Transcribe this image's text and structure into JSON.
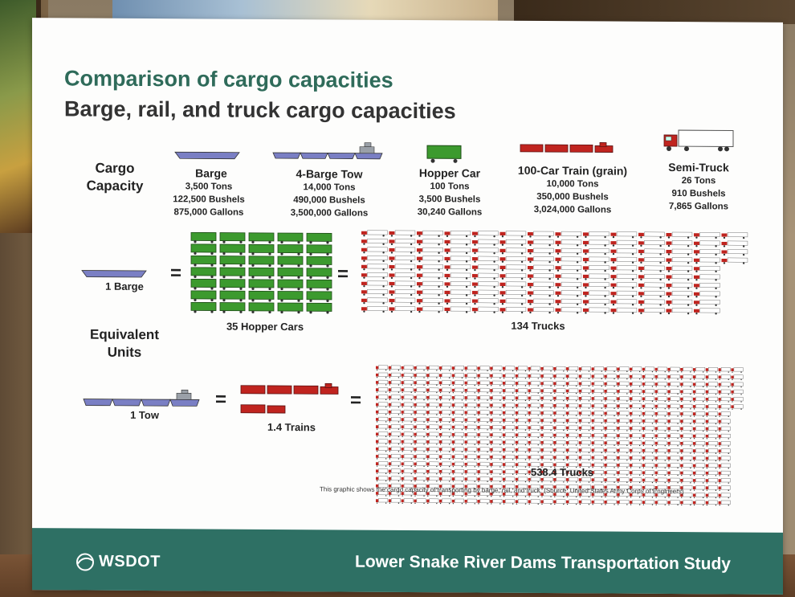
{
  "poster": {
    "title": "Comparison of cargo capacities",
    "subtitle": "Barge, rail, and truck cargo capacities",
    "cargo_capacity_label": "Cargo Capacity",
    "equivalent_units_label": "Equivalent Units",
    "vehicles": [
      {
        "name": "Barge",
        "lines": [
          "3,500 Tons",
          "122,500 Bushels",
          "875,000 Gallons"
        ]
      },
      {
        "name": "4-Barge Tow",
        "lines": [
          "14,000 Tons",
          "490,000 Bushels",
          "3,500,000 Gallons"
        ]
      },
      {
        "name": "Hopper Car",
        "lines": [
          "100 Tons",
          "3,500 Bushels",
          "30,240 Gallons"
        ]
      },
      {
        "name": "100-Car Train (grain)",
        "lines": [
          "10,000 Tons",
          "350,000 Bushels",
          "3,024,000 Gallons"
        ]
      },
      {
        "name": "Semi-Truck",
        "lines": [
          "26 Tons",
          "910 Bushels",
          "7,865 Gallons"
        ]
      }
    ],
    "equivalents": {
      "one_barge": "1 Barge",
      "hopper_cars": "35 Hopper Cars",
      "trucks_134": "134 Trucks",
      "one_tow": "1 Tow",
      "trains": "1.4 Trains",
      "trucks_538": "538.4 Trucks",
      "equals": "="
    },
    "source_note": "This graphic shows the cargo capacity of transporting by barge, rail, and truck. (Source: United States Army Corps of Engineers)",
    "footer": {
      "logo": "WSDOT",
      "study_title": "Lower Snake River Dams Transportation Study"
    },
    "counts": {
      "hopper_cars": 35,
      "trucks_row1": 134,
      "trucks_row2": 538.4
    },
    "colors": {
      "title_green": "#2f6b5a",
      "footer_teal": "#2e7064",
      "barge": "#7a7fc4",
      "hopper": "#3c9a2e",
      "train_red": "#c0241f"
    }
  }
}
